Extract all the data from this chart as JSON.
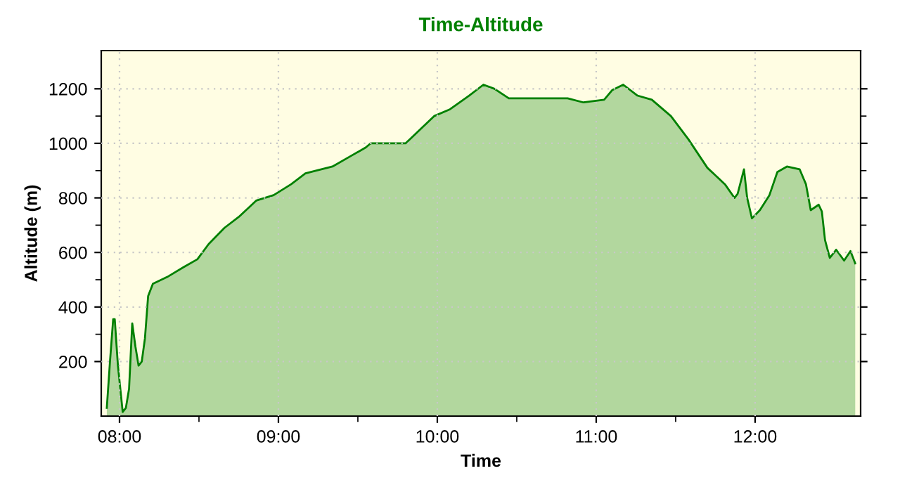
{
  "chart_data": {
    "type": "area",
    "title": "Time-Altitude",
    "xlabel": "Time",
    "ylabel": "Altitude (m)",
    "x": [
      7.92,
      7.94,
      7.96,
      7.97,
      7.99,
      8.02,
      8.04,
      8.06,
      8.08,
      8.1,
      8.12,
      8.14,
      8.16,
      8.18,
      8.21,
      8.3,
      8.4,
      8.49,
      8.56,
      8.66,
      8.75,
      8.86,
      8.97,
      9.08,
      9.17,
      9.34,
      9.46,
      9.55,
      9.58,
      9.8,
      9.98,
      10.08,
      10.2,
      10.29,
      10.36,
      10.45,
      10.7,
      10.82,
      10.92,
      11.05,
      11.1,
      11.17,
      11.26,
      11.35,
      11.47,
      11.58,
      11.7,
      11.81,
      11.87,
      11.89,
      11.93,
      11.95,
      11.98,
      12.03,
      12.09,
      12.14,
      12.2,
      12.28,
      12.32,
      12.35,
      12.4,
      12.42,
      12.44,
      12.47,
      12.51,
      12.56,
      12.6,
      12.63
    ],
    "series": [
      {
        "color": "#008000",
        "values": [
          30,
          200,
          355,
          355,
          185,
          15,
          30,
          100,
          340,
          255,
          185,
          200,
          285,
          440,
          485,
          510,
          545,
          575,
          630,
          690,
          730,
          790,
          810,
          850,
          890,
          915,
          955,
          985,
          1000,
          1000,
          1100,
          1125,
          1175,
          1215,
          1200,
          1165,
          1165,
          1165,
          1150,
          1160,
          1195,
          1215,
          1175,
          1160,
          1100,
          1015,
          910,
          850,
          800,
          815,
          905,
          800,
          725,
          755,
          810,
          895,
          915,
          905,
          850,
          755,
          775,
          750,
          645,
          580,
          610,
          570,
          605,
          560
        ]
      }
    ],
    "xlim": [
      7.885,
      12.664
    ],
    "ylim": [
      0,
      1340
    ],
    "xticks": [
      {
        "value": 8,
        "label": "08:00"
      },
      {
        "value": 9,
        "label": "09:00"
      },
      {
        "value": 10,
        "label": "10:00"
      },
      {
        "value": 11,
        "label": "11:00"
      },
      {
        "value": 12,
        "label": "12:00"
      }
    ],
    "yticks": [
      200,
      400,
      600,
      800,
      1000,
      1200
    ],
    "grid": true,
    "legend": false
  }
}
